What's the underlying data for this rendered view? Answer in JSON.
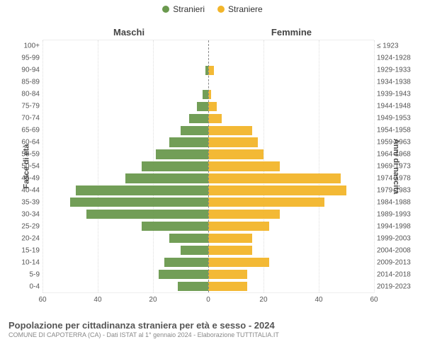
{
  "legend": {
    "male": {
      "label": "Stranieri",
      "color": "#6a994e"
    },
    "female": {
      "label": "Straniere",
      "color": "#f2b52a"
    }
  },
  "titles": {
    "left_side": "Maschi",
    "right_side": "Femmine",
    "y_left": "Fasce di età",
    "y_right": "Anni di nascita"
  },
  "chart": {
    "type": "population-pyramid",
    "xmax": 60,
    "xticks": [
      60,
      40,
      20,
      0,
      20,
      40,
      60
    ],
    "grid_color": "#dddddd",
    "axis_color": "#888888",
    "background_color": "#ffffff",
    "male_color": "#6a994e",
    "female_color": "#f2b52a",
    "label_fontsize": 10,
    "bar_height_ratio": 0.78,
    "rows": [
      {
        "age": "100+",
        "birth": "≤ 1923",
        "m": 0,
        "f": 0
      },
      {
        "age": "95-99",
        "birth": "1924-1928",
        "m": 0,
        "f": 0
      },
      {
        "age": "90-94",
        "birth": "1929-1933",
        "m": 1,
        "f": 2
      },
      {
        "age": "85-89",
        "birth": "1934-1938",
        "m": 0,
        "f": 0
      },
      {
        "age": "80-84",
        "birth": "1939-1943",
        "m": 2,
        "f": 1
      },
      {
        "age": "75-79",
        "birth": "1944-1948",
        "m": 4,
        "f": 3
      },
      {
        "age": "70-74",
        "birth": "1949-1953",
        "m": 7,
        "f": 5
      },
      {
        "age": "65-69",
        "birth": "1954-1958",
        "m": 10,
        "f": 16
      },
      {
        "age": "60-64",
        "birth": "1959-1963",
        "m": 14,
        "f": 18
      },
      {
        "age": "55-59",
        "birth": "1964-1968",
        "m": 19,
        "f": 20
      },
      {
        "age": "50-54",
        "birth": "1969-1973",
        "m": 24,
        "f": 26
      },
      {
        "age": "45-49",
        "birth": "1974-1978",
        "m": 30,
        "f": 48
      },
      {
        "age": "40-44",
        "birth": "1979-1983",
        "m": 48,
        "f": 50
      },
      {
        "age": "35-39",
        "birth": "1984-1988",
        "m": 50,
        "f": 42
      },
      {
        "age": "30-34",
        "birth": "1989-1993",
        "m": 44,
        "f": 26
      },
      {
        "age": "25-29",
        "birth": "1994-1998",
        "m": 24,
        "f": 22
      },
      {
        "age": "20-24",
        "birth": "1999-2003",
        "m": 14,
        "f": 16
      },
      {
        "age": "15-19",
        "birth": "2004-2008",
        "m": 10,
        "f": 16
      },
      {
        "age": "10-14",
        "birth": "2009-2013",
        "m": 16,
        "f": 22
      },
      {
        "age": "5-9",
        "birth": "2014-2018",
        "m": 18,
        "f": 14
      },
      {
        "age": "0-4",
        "birth": "2019-2023",
        "m": 11,
        "f": 14
      }
    ]
  },
  "footer": {
    "title": "Popolazione per cittadinanza straniera per età e sesso - 2024",
    "subtitle": "COMUNE DI CAPOTERRA (CA) - Dati ISTAT al 1° gennaio 2024 - Elaborazione TUTTITALIA.IT"
  }
}
